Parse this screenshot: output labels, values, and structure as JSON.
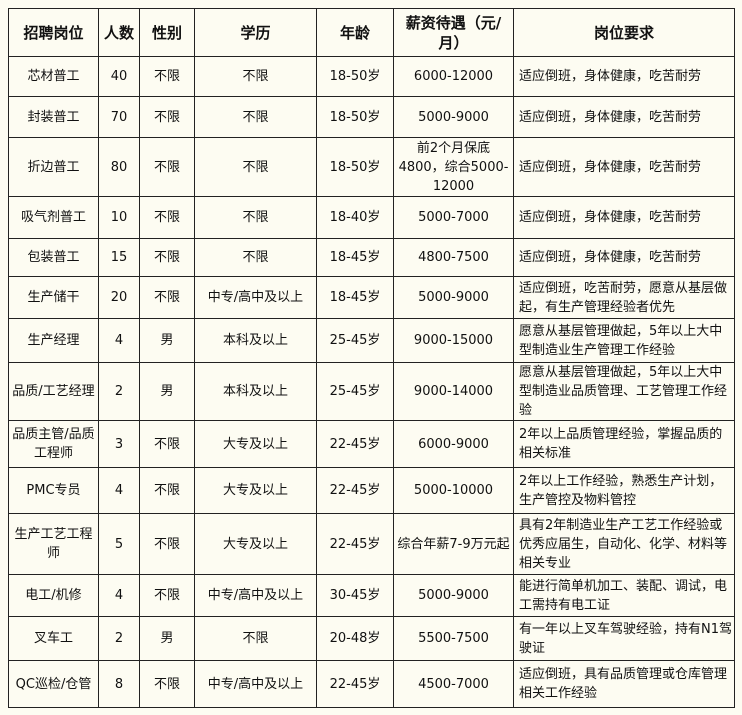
{
  "headers": [
    "招聘岗位",
    "人数",
    "性别",
    "学历",
    "年龄",
    "薪资待遇（元/月）",
    "岗位要求"
  ],
  "rows": [
    [
      "芯材普工",
      "40",
      "不限",
      "不限",
      "18-50岁",
      "6000-12000",
      "适应倒班，身体健康，吃苦耐劳"
    ],
    [
      "封装普工",
      "70",
      "不限",
      "不限",
      "18-50岁",
      "5000-9000",
      "适应倒班，身体健康，吃苦耐劳"
    ],
    [
      "折边普工",
      "80",
      "不限",
      "不限",
      "18-50岁",
      "前2个月保底4800，综合5000-12000",
      "适应倒班，身体健康，吃苦耐劳"
    ],
    [
      "吸气剂普工",
      "10",
      "不限",
      "不限",
      "18-40岁",
      "5000-7000",
      "适应倒班，身体健康，吃苦耐劳"
    ],
    [
      "包装普工",
      "15",
      "不限",
      "不限",
      "18-45岁",
      "4800-7500",
      "适应倒班，身体健康，吃苦耐劳"
    ],
    [
      "生产储干",
      "20",
      "不限",
      "中专/高中及以上",
      "18-45岁",
      "5000-9000",
      "适应倒班，吃苦耐劳，愿意从基层做起，有生产管理经验者优先"
    ],
    [
      "生产经理",
      "4",
      "男",
      "本科及以上",
      "25-45岁",
      "9000-15000",
      "愿意从基层管理做起，5年以上大中型制造业生产管理工作经验"
    ],
    [
      "品质/工艺经理",
      "2",
      "男",
      "本科及以上",
      "25-45岁",
      "9000-14000",
      "愿意从基层管理做起，5年以上大中型制造业品质管理、工艺管理工作经验"
    ],
    [
      "品质主管/品质工程师",
      "3",
      "不限",
      "大专及以上",
      "22-45岁",
      "6000-9000",
      "2年以上品质管理经验，掌握品质的相关标准"
    ],
    [
      "PMC专员",
      "4",
      "不限",
      "大专及以上",
      "22-45岁",
      "5000-10000",
      "2年以上工作经验，熟悉生产计划，生产管控及物料管控"
    ],
    [
      "生产工艺工程师",
      "5",
      "不限",
      "大专及以上",
      "22-45岁",
      "综合年薪7-9万元起",
      "具有2年制造业生产工艺工作经验或优秀应届生，自动化、化学、材料等相关专业"
    ],
    [
      "电工/机修",
      "4",
      "不限",
      "中专/高中及以上",
      "30-45岁",
      "5000-9000",
      "能进行简单机加工、装配、调试，电工需持有电工证"
    ],
    [
      "叉车工",
      "2",
      "男",
      "不限",
      "20-48岁",
      "5500-7500",
      "有一年以上叉车驾驶经验，持有N1驾驶证"
    ],
    [
      "QC巡检/仓管",
      "8",
      "不限",
      "中专/高中及以上",
      "22-45岁",
      "4500-7000",
      "适应倒班，具有品质管理或仓库管理相关工作经验"
    ]
  ]
}
